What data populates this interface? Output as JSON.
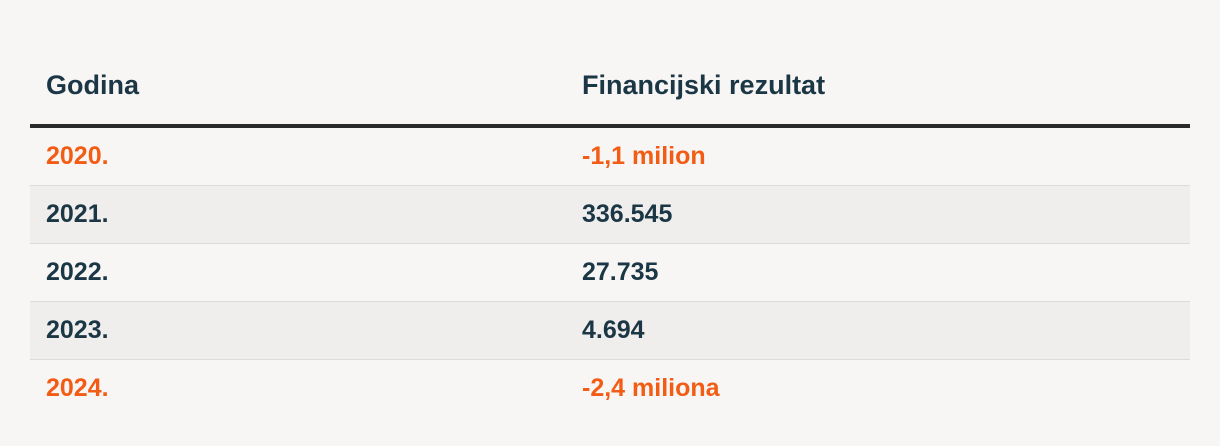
{
  "table": {
    "headers": [
      "Godina",
      "Financijski rezultat"
    ],
    "rows": [
      {
        "year": "2020.",
        "result": "-1,1 milion",
        "negative": true
      },
      {
        "year": "2021.",
        "result": "336.545",
        "negative": false
      },
      {
        "year": "2022.",
        "result": "27.735",
        "negative": false
      },
      {
        "year": "2023.",
        "result": "4.694",
        "negative": false
      },
      {
        "year": "2024.",
        "result": "-2,4 miliona",
        "negative": true
      }
    ]
  },
  "colors": {
    "text": "#1b3645",
    "negative": "#f25c14",
    "background": "#f8f6f4",
    "stripe": "#f0eeec"
  }
}
